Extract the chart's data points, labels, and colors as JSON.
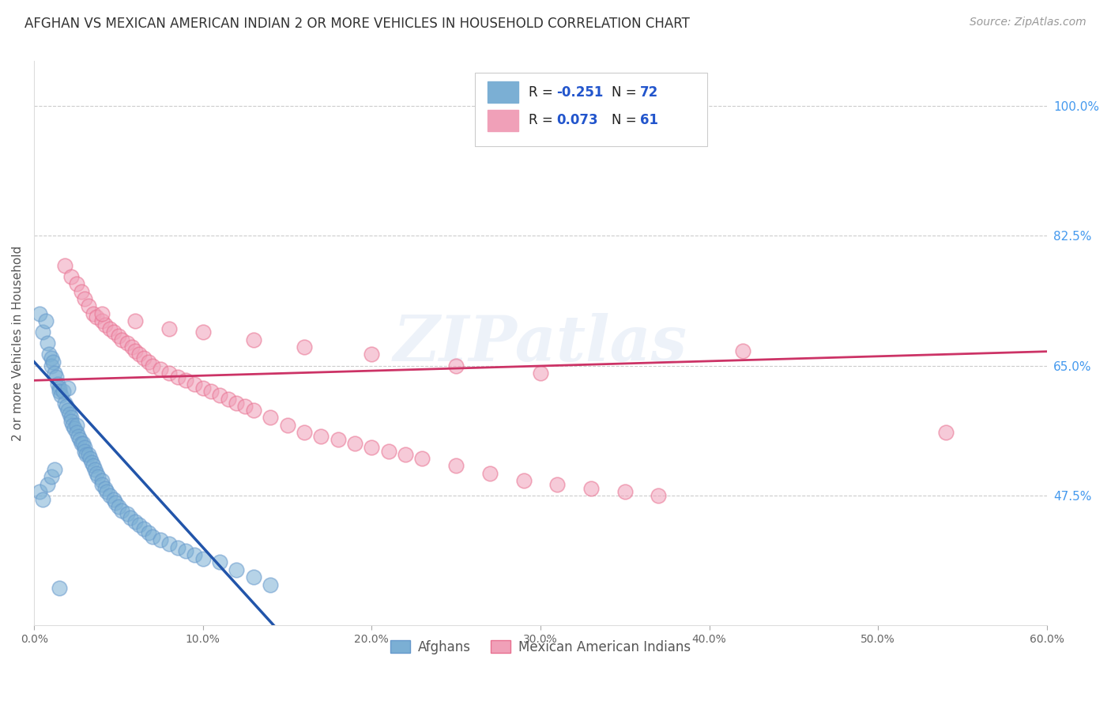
{
  "title": "AFGHAN VS MEXICAN AMERICAN INDIAN 2 OR MORE VEHICLES IN HOUSEHOLD CORRELATION CHART",
  "source": "Source: ZipAtlas.com",
  "ylabel": "2 or more Vehicles in Household",
  "ytick_labels": [
    "47.5%",
    "65.0%",
    "82.5%",
    "100.0%"
  ],
  "ytick_values": [
    0.475,
    0.65,
    0.825,
    1.0
  ],
  "xmin": 0.0,
  "xmax": 0.6,
  "ymin": 0.3,
  "ymax": 1.06,
  "legend1_R": "-0.251",
  "legend1_N": "72",
  "legend2_R": "0.073",
  "legend2_N": "61",
  "legend_label1": "Afghans",
  "legend_label2": "Mexican American Indians",
  "blue_color": "#7bafd4",
  "pink_color": "#f0a0b8",
  "blue_edge_color": "#6699cc",
  "pink_edge_color": "#e87090",
  "blue_line_color": "#2255aa",
  "pink_line_color": "#cc3366",
  "watermark": "ZIPatlas",
  "bg_color": "#ffffff",
  "grid_color": "#cccccc",
  "title_color": "#333333",
  "right_tick_color": "#4499ee",
  "R_N_color": "#2255cc",
  "source_color": "#999999"
}
